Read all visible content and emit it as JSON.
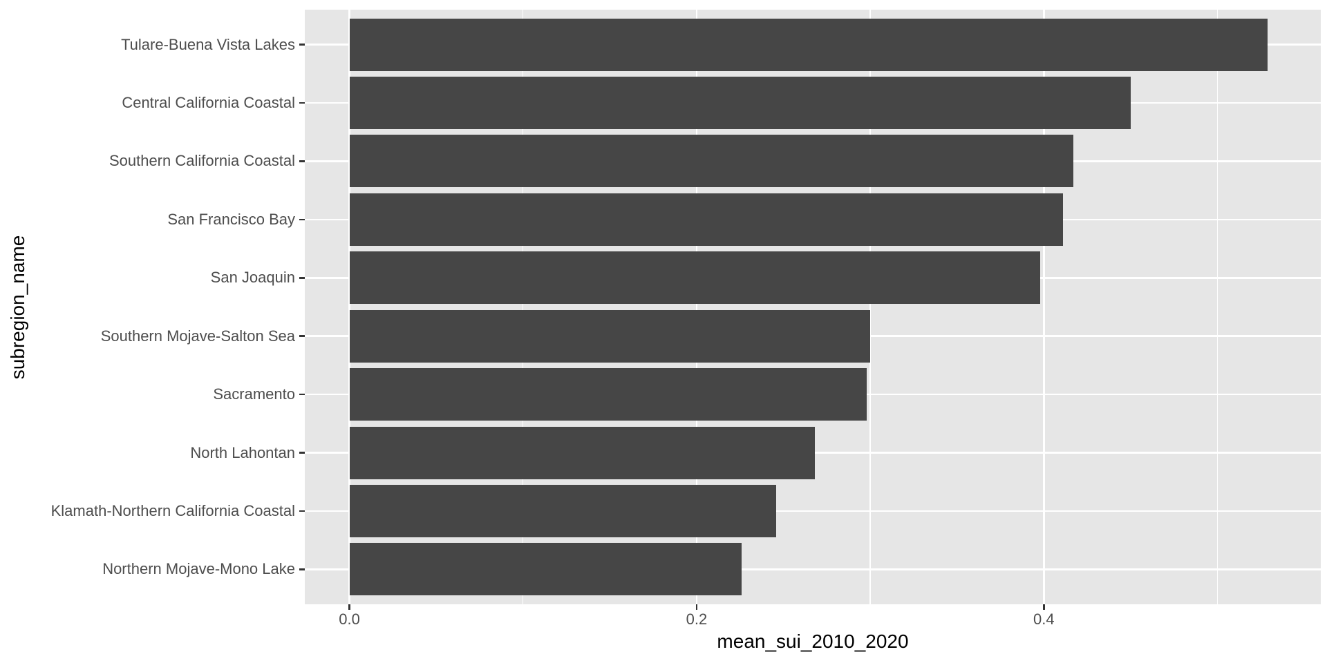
{
  "chart_data": {
    "type": "bar",
    "orientation": "horizontal",
    "title": "",
    "xlabel": "mean_sui_2010_2020",
    "ylabel": "subregion_name",
    "categories": [
      "Tulare-Buena Vista Lakes",
      "Central California Coastal",
      "Southern California Coastal",
      "San Francisco Bay",
      "San Joaquin",
      "Southern Mojave-Salton Sea",
      "Sacramento",
      "North Lahontan",
      "Klamath-Northern California Coastal",
      "Northern Mojave-Mono Lake"
    ],
    "values": [
      0.529,
      0.45,
      0.417,
      0.411,
      0.398,
      0.3,
      0.298,
      0.268,
      0.246,
      0.226
    ],
    "xlim": [
      -0.0257,
      0.5595
    ],
    "x_major_ticks": [
      0.0,
      0.2,
      0.4
    ],
    "x_tick_labels": [
      "0.0",
      "0.2",
      "0.4"
    ],
    "x_minor_ticks": [
      0.1,
      0.3,
      0.5
    ],
    "grid": true,
    "legend_position": "none",
    "bar_width_fraction": 0.9,
    "colors": {
      "bar_fill": "#464646",
      "panel_background": "#E6E6E6",
      "gridline": "#FFFFFF",
      "tick_label_text": "#4D4D4D",
      "axis_title_text": "#000000",
      "tick_mark": "#333333",
      "figure_background": "#FFFFFF"
    }
  }
}
